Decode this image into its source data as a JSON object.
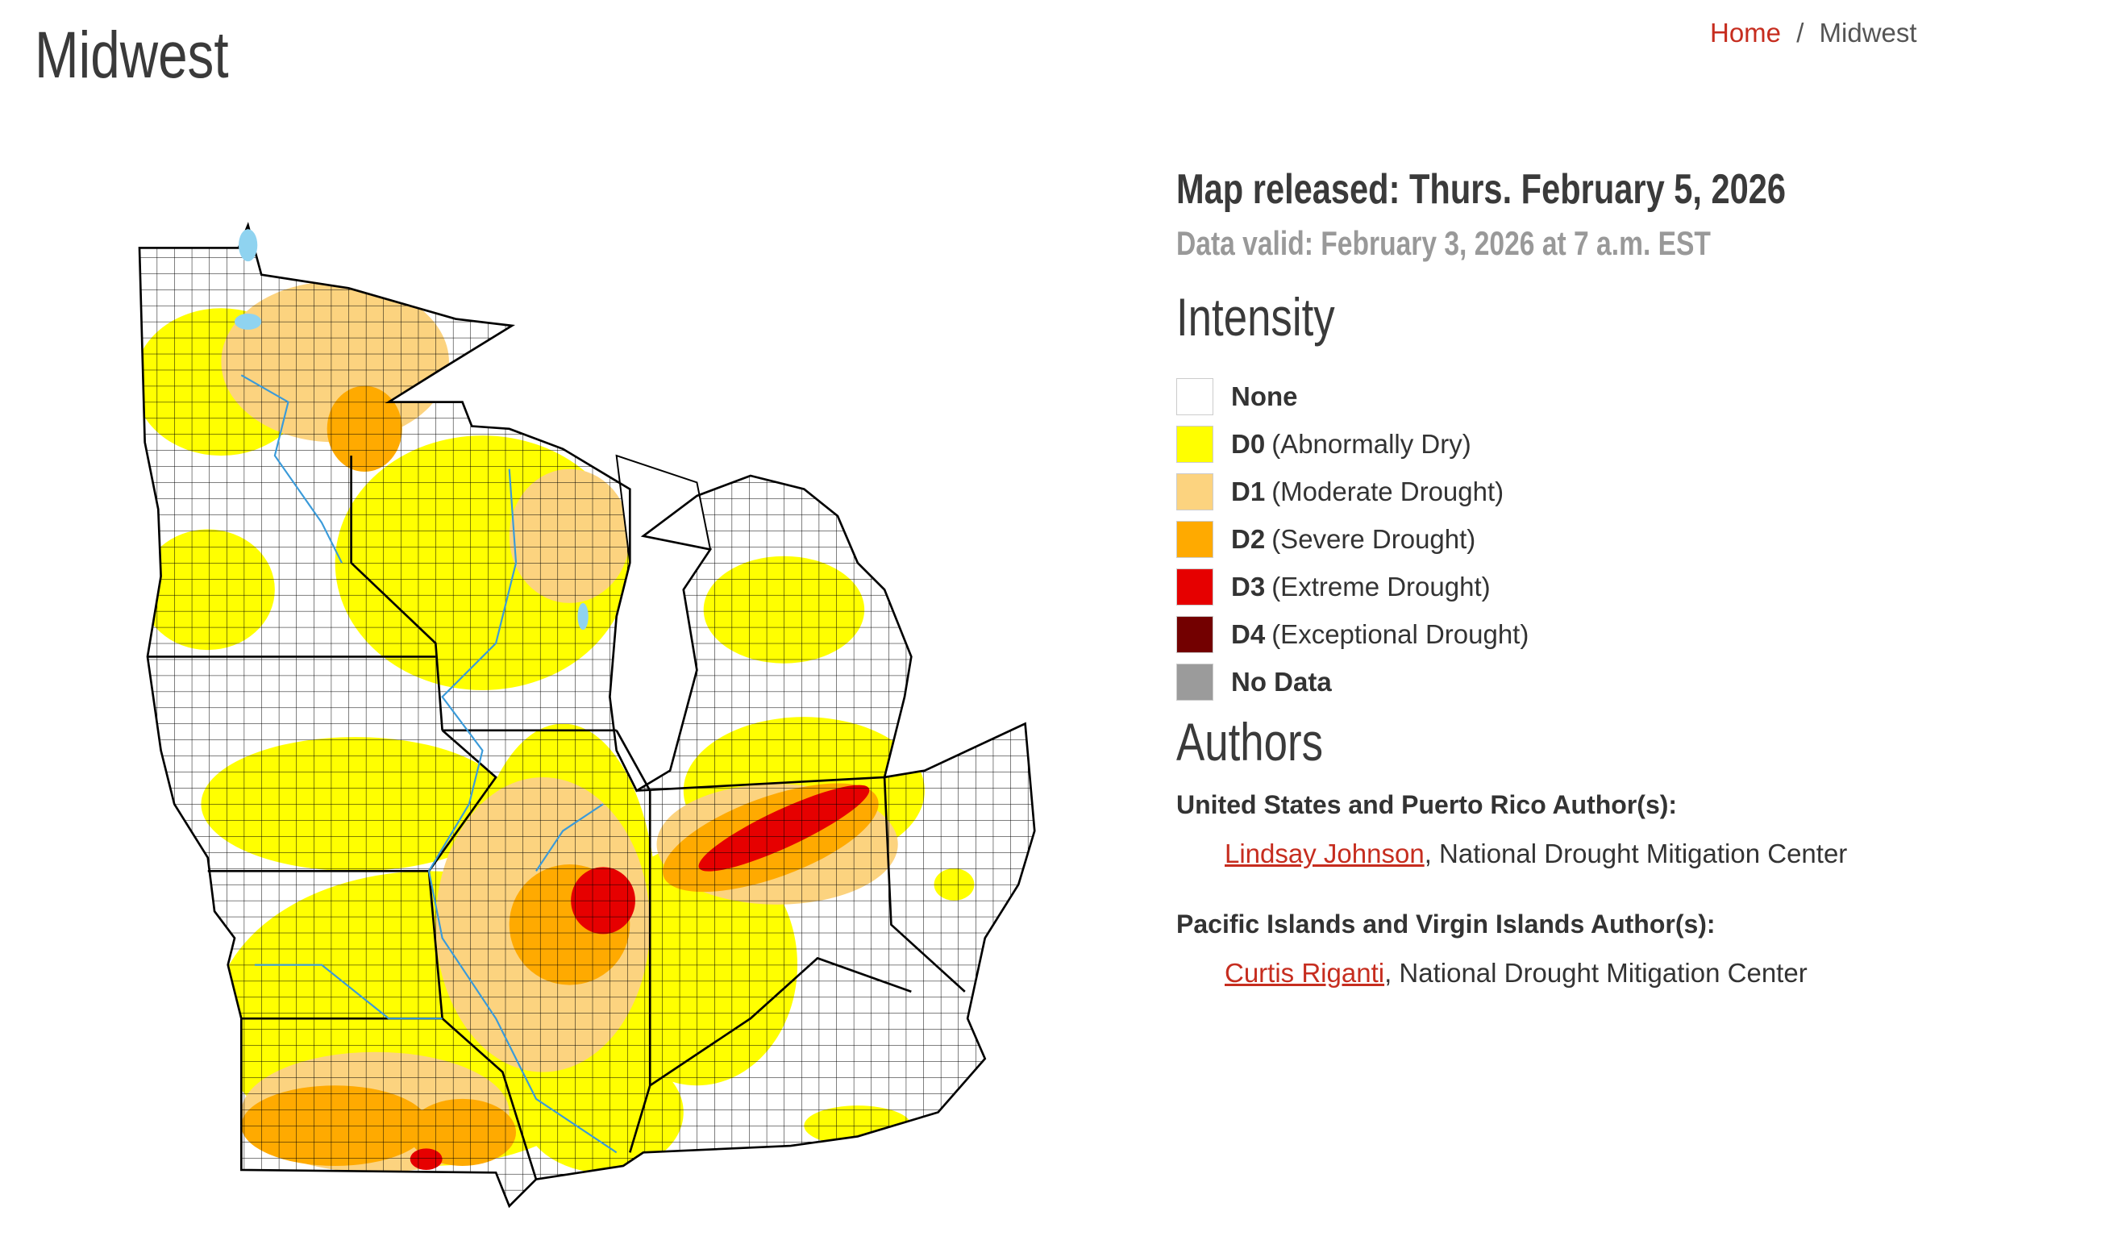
{
  "header": {
    "title": "Midwest",
    "breadcrumb": [
      "Home",
      "/",
      "Midwest"
    ]
  },
  "map_info": {
    "released": "Map released: Thurs. February 5, 2026",
    "valid": "Data valid: February 3, 2026 at 7 a.m. EST"
  },
  "legend": {
    "title": "Intensity",
    "items": [
      {
        "label": "None",
        "color": "#ffffff"
      },
      {
        "code": "D0",
        "description": "(Abnormally Dry)",
        "color": "#ffff00"
      },
      {
        "code": "D1",
        "description": "(Moderate Drought)",
        "color": "#fcd37f"
      },
      {
        "code": "D2",
        "description": "(Severe Drought)",
        "color": "#ffaa00"
      },
      {
        "code": "D3",
        "description": "(Extreme Drought)",
        "color": "#e60000"
      },
      {
        "code": "D4",
        "description": "(Exceptional Drought)",
        "color": "#730000"
      },
      {
        "label": "No Data",
        "color": "#9b9b9b"
      }
    ]
  },
  "authors": {
    "title": "Authors",
    "groups": [
      {
        "heading": "United States and Puerto Rico Author(s):",
        "name": "Lindsay Johnson",
        "affiliation": ", National Drought Mitigation Center"
      },
      {
        "heading": "Pacific Islands and Virgin Islands Author(s):",
        "name": "Curtis Riganti",
        "affiliation": ", National Drought Mitigation Center"
      }
    ]
  }
}
